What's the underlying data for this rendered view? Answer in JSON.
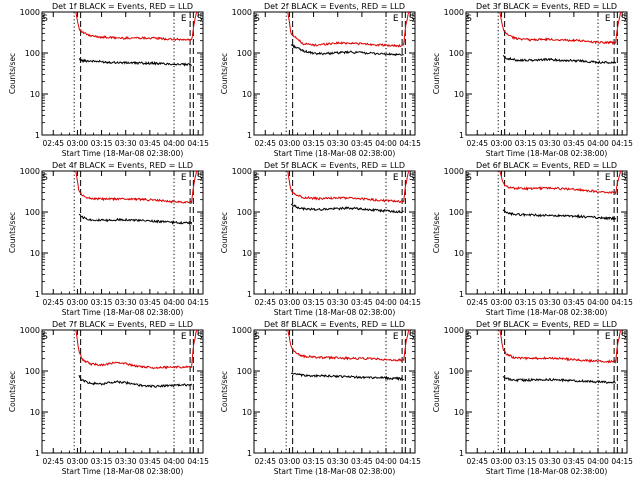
{
  "figure": {
    "xlabel": "Start Time (18-Mar-08 02:38:00)",
    "ylabel": "Counts/sec",
    "x_tick_labels": [
      "02:45",
      "03:00",
      "03:15",
      "03:30",
      "03:45",
      "04:00",
      "04:15"
    ],
    "y_tick_labels": [
      "1",
      "10",
      "100",
      "1000"
    ],
    "event_markers": [
      "E",
      "S"
    ],
    "colors": {
      "events": "#000000",
      "lld": "#dd0000"
    }
  },
  "chart_data": [
    {
      "type": "line",
      "title": "Det 1f BLACK = Events, RED = LLD",
      "x_unit": "minutes since 02:38:00",
      "xlim": [
        0,
        100
      ],
      "ylim": [
        1,
        1000
      ],
      "y_scale": "log",
      "x_ticks": [
        7,
        22,
        37,
        52,
        67,
        82,
        97
      ],
      "x_tick_labels": [
        "02:45",
        "03:00",
        "03:15",
        "03:30",
        "03:45",
        "04:00",
        "04:15"
      ],
      "y_ticks": [
        1,
        10,
        100,
        1000
      ],
      "y_tick_labels": [
        "1",
        "10",
        "100",
        "1000"
      ],
      "dotted_lines": [
        20,
        82
      ],
      "dashed_lines": [
        24,
        92,
        94
      ],
      "markers": [
        {
          "label": "E",
          "x": 88
        },
        {
          "label": "S",
          "x": 98
        }
      ],
      "series": [
        {
          "color": "#000000",
          "x": [
            23,
            25,
            30,
            40,
            50,
            60,
            70,
            80,
            90,
            93
          ],
          "y": [
            70,
            65,
            64,
            60,
            58,
            57,
            56,
            54,
            52,
            52
          ]
        },
        {
          "color": "#dd0000",
          "x": [
            21,
            23,
            25,
            30,
            40,
            50,
            60,
            70,
            80,
            90,
            93,
            94,
            96
          ],
          "y": [
            1000,
            400,
            320,
            260,
            240,
            230,
            235,
            230,
            215,
            210,
            210,
            400,
            1000
          ]
        }
      ]
    },
    {
      "type": "line",
      "title": "Det 2f BLACK = Events, RED = LLD",
      "x_unit": "minutes since 02:38:00",
      "xlim": [
        0,
        100
      ],
      "ylim": [
        1,
        1000
      ],
      "y_scale": "log",
      "x_ticks": [
        7,
        22,
        37,
        52,
        67,
        82,
        97
      ],
      "x_tick_labels": [
        "02:45",
        "03:00",
        "03:15",
        "03:30",
        "03:45",
        "04:00",
        "04:15"
      ],
      "y_ticks": [
        1,
        10,
        100,
        1000
      ],
      "y_tick_labels": [
        "1",
        "10",
        "100",
        "1000"
      ],
      "dotted_lines": [
        20,
        82
      ],
      "dashed_lines": [
        24,
        92,
        94
      ],
      "markers": [
        {
          "label": "E",
          "x": 88
        },
        {
          "label": "S",
          "x": 98
        }
      ],
      "series": [
        {
          "color": "#000000",
          "x": [
            23,
            25,
            30,
            38,
            50,
            60,
            70,
            80,
            90,
            93
          ],
          "y": [
            160,
            145,
            115,
            95,
            100,
            105,
            100,
            95,
            90,
            88
          ]
        },
        {
          "color": "#dd0000",
          "x": [
            21,
            23,
            25,
            30,
            38,
            50,
            60,
            70,
            80,
            90,
            93,
            94,
            96
          ],
          "y": [
            1000,
            300,
            260,
            170,
            155,
            175,
            175,
            165,
            155,
            150,
            150,
            400,
            1000
          ]
        }
      ]
    },
    {
      "type": "line",
      "title": "Det 3f BLACK = Events, RED = LLD",
      "x_unit": "minutes since 02:38:00",
      "xlim": [
        0,
        100
      ],
      "ylim": [
        1,
        1000
      ],
      "y_scale": "log",
      "x_ticks": [
        7,
        22,
        37,
        52,
        67,
        82,
        97
      ],
      "x_tick_labels": [
        "02:45",
        "03:00",
        "03:15",
        "03:30",
        "03:45",
        "04:00",
        "04:15"
      ],
      "y_ticks": [
        1,
        10,
        100,
        1000
      ],
      "y_tick_labels": [
        "1",
        "10",
        "100",
        "1000"
      ],
      "dotted_lines": [
        20,
        82
      ],
      "dashed_lines": [
        24,
        92,
        94
      ],
      "markers": [
        {
          "label": "E",
          "x": 88
        },
        {
          "label": "S",
          "x": 98
        }
      ],
      "series": [
        {
          "color": "#000000",
          "x": [
            23,
            25,
            30,
            40,
            50,
            60,
            70,
            80,
            90,
            93
          ],
          "y": [
            85,
            75,
            68,
            66,
            70,
            66,
            65,
            60,
            58,
            58
          ]
        },
        {
          "color": "#dd0000",
          "x": [
            21,
            23,
            25,
            30,
            40,
            50,
            60,
            70,
            80,
            90,
            93,
            94,
            96
          ],
          "y": [
            1000,
            380,
            300,
            230,
            210,
            215,
            210,
            200,
            185,
            180,
            180,
            400,
            1000
          ]
        }
      ]
    },
    {
      "type": "line",
      "title": "Det 4f BLACK = Events, RED = LLD",
      "x_unit": "minutes since 02:38:00",
      "xlim": [
        0,
        100
      ],
      "ylim": [
        1,
        1000
      ],
      "y_scale": "log",
      "x_ticks": [
        7,
        22,
        37,
        52,
        67,
        82,
        97
      ],
      "x_tick_labels": [
        "02:45",
        "03:00",
        "03:15",
        "03:30",
        "03:45",
        "04:00",
        "04:15"
      ],
      "y_ticks": [
        1,
        10,
        100,
        1000
      ],
      "y_tick_labels": [
        "1",
        "10",
        "100",
        "1000"
      ],
      "dotted_lines": [
        20,
        82
      ],
      "dashed_lines": [
        24,
        92,
        94
      ],
      "markers": [
        {
          "label": "E",
          "x": 88
        },
        {
          "label": "S",
          "x": 98
        }
      ],
      "series": [
        {
          "color": "#000000",
          "x": [
            23,
            25,
            30,
            40,
            50,
            60,
            70,
            80,
            90,
            93
          ],
          "y": [
            90,
            75,
            65,
            62,
            66,
            62,
            60,
            56,
            54,
            54
          ]
        },
        {
          "color": "#dd0000",
          "x": [
            21,
            23,
            25,
            30,
            40,
            50,
            60,
            70,
            80,
            90,
            93,
            94,
            96
          ],
          "y": [
            1000,
            320,
            250,
            215,
            205,
            210,
            205,
            195,
            180,
            175,
            180,
            400,
            1000
          ]
        }
      ]
    },
    {
      "type": "line",
      "title": "Det 5f BLACK = Events, RED = LLD",
      "x_unit": "minutes since 02:38:00",
      "xlim": [
        0,
        100
      ],
      "ylim": [
        1,
        1000
      ],
      "y_scale": "log",
      "x_ticks": [
        7,
        22,
        37,
        52,
        67,
        82,
        97
      ],
      "x_tick_labels": [
        "02:45",
        "03:00",
        "03:15",
        "03:30",
        "03:45",
        "04:00",
        "04:15"
      ],
      "y_ticks": [
        1,
        10,
        100,
        1000
      ],
      "y_tick_labels": [
        "1",
        "10",
        "100",
        "1000"
      ],
      "dotted_lines": [
        20,
        82
      ],
      "dashed_lines": [
        24,
        92,
        94
      ],
      "markers": [
        {
          "label": "E",
          "x": 88
        },
        {
          "label": "S",
          "x": 98
        }
      ],
      "series": [
        {
          "color": "#000000",
          "x": [
            23,
            25,
            30,
            40,
            50,
            60,
            70,
            80,
            90,
            93
          ],
          "y": [
            155,
            140,
            120,
            115,
            120,
            125,
            115,
            108,
            102,
            100
          ]
        },
        {
          "color": "#dd0000",
          "x": [
            21,
            23,
            25,
            30,
            40,
            50,
            60,
            70,
            80,
            90,
            93,
            94,
            96
          ],
          "y": [
            1000,
            320,
            280,
            230,
            210,
            220,
            220,
            205,
            190,
            180,
            180,
            400,
            1000
          ]
        }
      ]
    },
    {
      "type": "line",
      "title": "Det 6f BLACK = Events, RED = LLD",
      "x_unit": "minutes since 02:38:00",
      "xlim": [
        0,
        100
      ],
      "ylim": [
        1,
        1000
      ],
      "y_scale": "log",
      "x_ticks": [
        7,
        22,
        37,
        52,
        67,
        82,
        97
      ],
      "x_tick_labels": [
        "02:45",
        "03:00",
        "03:15",
        "03:30",
        "03:45",
        "04:00",
        "04:15"
      ],
      "y_ticks": [
        1,
        10,
        100,
        1000
      ],
      "y_tick_labels": [
        "1",
        "10",
        "100",
        "1000"
      ],
      "dotted_lines": [
        20,
        82
      ],
      "dashed_lines": [
        24,
        92,
        94
      ],
      "markers": [
        {
          "label": "E",
          "x": 88
        },
        {
          "label": "S",
          "x": 98
        }
      ],
      "series": [
        {
          "color": "#000000",
          "x": [
            23,
            25,
            30,
            40,
            50,
            60,
            70,
            80,
            90,
            93
          ],
          "y": [
            110,
            95,
            88,
            85,
            82,
            80,
            78,
            74,
            70,
            70
          ]
        },
        {
          "color": "#dd0000",
          "x": [
            21,
            23,
            25,
            30,
            40,
            50,
            60,
            70,
            80,
            90,
            93,
            94,
            96
          ],
          "y": [
            1000,
            500,
            420,
            380,
            370,
            385,
            370,
            350,
            320,
            300,
            300,
            500,
            1000
          ]
        }
      ]
    },
    {
      "type": "line",
      "title": "Det 7f BLACK = Events, RED = LLD",
      "x_unit": "minutes since 02:38:00",
      "xlim": [
        0,
        100
      ],
      "ylim": [
        1,
        1000
      ],
      "y_scale": "log",
      "x_ticks": [
        7,
        22,
        37,
        52,
        67,
        82,
        97
      ],
      "x_tick_labels": [
        "02:45",
        "03:00",
        "03:15",
        "03:30",
        "03:45",
        "04:00",
        "04:15"
      ],
      "y_ticks": [
        1,
        10,
        100,
        1000
      ],
      "y_tick_labels": [
        "1",
        "10",
        "100",
        "1000"
      ],
      "dotted_lines": [
        20,
        82
      ],
      "dashed_lines": [
        24,
        92,
        94
      ],
      "markers": [
        {
          "label": "E",
          "x": 88
        },
        {
          "label": "S",
          "x": 98
        }
      ],
      "series": [
        {
          "color": "#000000",
          "x": [
            23,
            25,
            30,
            38,
            45,
            52,
            60,
            70,
            80,
            90,
            93
          ],
          "y": [
            75,
            60,
            50,
            48,
            55,
            52,
            45,
            42,
            44,
            46,
            46
          ]
        },
        {
          "color": "#dd0000",
          "x": [
            21,
            23,
            25,
            30,
            38,
            45,
            52,
            60,
            70,
            80,
            90,
            93,
            94,
            96
          ],
          "y": [
            1000,
            300,
            190,
            150,
            140,
            160,
            150,
            130,
            120,
            125,
            125,
            125,
            400,
            1000
          ]
        }
      ]
    },
    {
      "type": "line",
      "title": "Det 8f BLACK = Events, RED = LLD",
      "x_unit": "minutes since 02:38:00",
      "xlim": [
        0,
        100
      ],
      "ylim": [
        1,
        1000
      ],
      "y_scale": "log",
      "x_ticks": [
        7,
        22,
        37,
        52,
        67,
        82,
        97
      ],
      "x_tick_labels": [
        "02:45",
        "03:00",
        "03:15",
        "03:30",
        "03:45",
        "04:00",
        "04:15"
      ],
      "y_ticks": [
        1,
        10,
        100,
        1000
      ],
      "y_tick_labels": [
        "1",
        "10",
        "100",
        "1000"
      ],
      "dotted_lines": [
        20,
        82
      ],
      "dashed_lines": [
        24,
        92,
        94
      ],
      "markers": [
        {
          "label": "E",
          "x": 88
        },
        {
          "label": "S",
          "x": 98
        }
      ],
      "series": [
        {
          "color": "#000000",
          "x": [
            23,
            25,
            30,
            40,
            50,
            60,
            70,
            80,
            90,
            93
          ],
          "y": [
            90,
            85,
            78,
            76,
            75,
            72,
            70,
            68,
            65,
            65
          ]
        },
        {
          "color": "#dd0000",
          "x": [
            21,
            23,
            25,
            30,
            40,
            50,
            60,
            70,
            80,
            90,
            93,
            94,
            96
          ],
          "y": [
            1000,
            400,
            300,
            230,
            215,
            210,
            205,
            200,
            190,
            185,
            185,
            400,
            1000
          ]
        }
      ]
    },
    {
      "type": "line",
      "title": "Det 9f BLACK = Events, RED = LLD",
      "x_unit": "minutes since 02:38:00",
      "xlim": [
        0,
        100
      ],
      "ylim": [
        1,
        1000
      ],
      "y_scale": "log",
      "x_ticks": [
        7,
        22,
        37,
        52,
        67,
        82,
        97
      ],
      "x_tick_labels": [
        "02:45",
        "03:00",
        "03:15",
        "03:30",
        "03:45",
        "04:00",
        "04:15"
      ],
      "y_ticks": [
        1,
        10,
        100,
        1000
      ],
      "y_tick_labels": [
        "1",
        "10",
        "100",
        "1000"
      ],
      "dotted_lines": [
        20,
        82
      ],
      "dashed_lines": [
        24,
        92,
        94
      ],
      "markers": [
        {
          "label": "E",
          "x": 88
        },
        {
          "label": "S",
          "x": 98
        }
      ],
      "series": [
        {
          "color": "#000000",
          "x": [
            23,
            25,
            30,
            40,
            50,
            60,
            70,
            80,
            90,
            93
          ],
          "y": [
            75,
            65,
            60,
            60,
            62,
            60,
            57,
            55,
            53,
            53
          ]
        },
        {
          "color": "#dd0000",
          "x": [
            21,
            23,
            25,
            30,
            40,
            50,
            60,
            70,
            80,
            90,
            93,
            94,
            96
          ],
          "y": [
            1000,
            350,
            260,
            210,
            200,
            205,
            200,
            185,
            175,
            170,
            170,
            400,
            1000
          ]
        }
      ]
    }
  ]
}
